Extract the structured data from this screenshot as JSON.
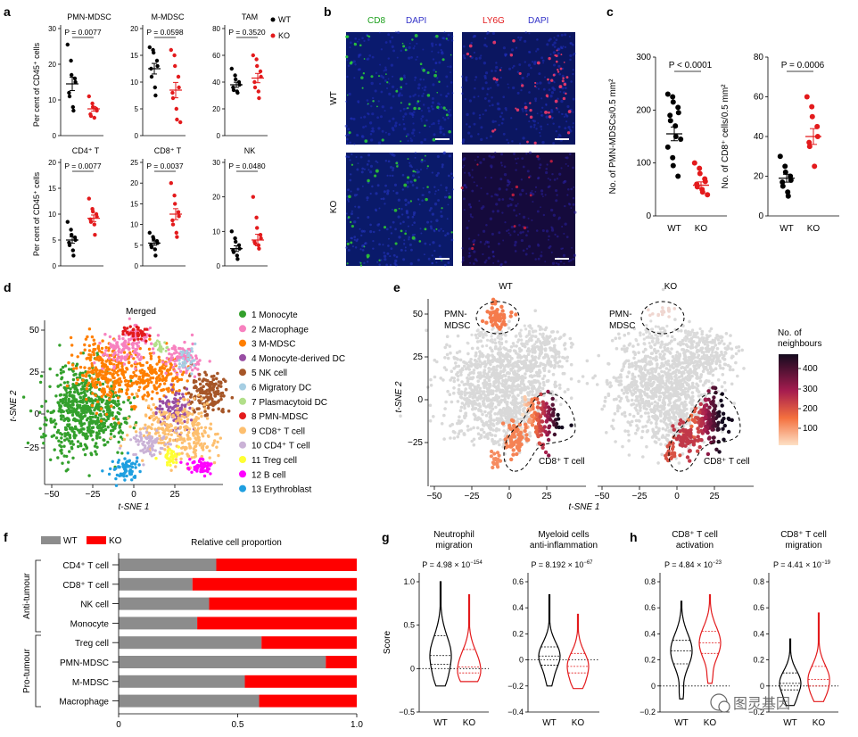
{
  "panels": {
    "a": "a",
    "b": "b",
    "c": "c",
    "d": "d",
    "e": "e",
    "f": "f",
    "g": "g",
    "h": "h"
  },
  "colors": {
    "wt": "#000000",
    "ko": "#e31a1c",
    "grey": "#8c8c8c",
    "red": "#ff0000"
  },
  "panel_a": {
    "ylabel": "Per cent of CD45⁺ cells",
    "legend": [
      {
        "label": "WT",
        "color": "#000000"
      },
      {
        "label": "KO",
        "color": "#e31a1c"
      }
    ],
    "plots": [
      {
        "title": "PMN-MDSC",
        "p": "P = 0.0077",
        "ylim": [
          0,
          30
        ],
        "ticks": [
          "0",
          "10",
          "20",
          "30"
        ],
        "wt": [
          25.5,
          21,
          17,
          16,
          15,
          12,
          11,
          8,
          7
        ],
        "ko": [
          11,
          9,
          8,
          7.5,
          7,
          6,
          5.5,
          5
        ],
        "wt_mean": 14.5,
        "ko_mean": 7.5
      },
      {
        "title": "M-MDSC",
        "p": "P = 0.0598",
        "ylim": [
          0,
          20
        ],
        "ticks": [
          "0",
          "5",
          "10",
          "15",
          "20"
        ],
        "wt": [
          16.5,
          16,
          15.5,
          14,
          13,
          12.5,
          11,
          9,
          7.5
        ],
        "ko": [
          16,
          15,
          13,
          11,
          9,
          8,
          7,
          5,
          3,
          2.5
        ],
        "wt_mean": 12.5,
        "ko_mean": 8.5
      },
      {
        "title": "TAM",
        "p": "P = 0.3520",
        "ylim": [
          0,
          80
        ],
        "ticks": [
          "0",
          "20",
          "40",
          "60",
          "80"
        ],
        "wt": [
          50,
          45,
          42,
          40,
          38,
          36,
          34,
          33,
          32
        ],
        "ko": [
          60,
          57,
          52,
          48,
          44,
          40,
          36,
          33,
          28
        ],
        "wt_mean": 38,
        "ko_mean": 43
      },
      {
        "title": "CD4⁺ T",
        "p": "P = 0.0077",
        "ylim": [
          0,
          20
        ],
        "ticks": [
          "0",
          "5",
          "10",
          "15",
          "20"
        ],
        "wt": [
          8.5,
          7,
          6,
          5.5,
          5,
          4.5,
          4,
          3,
          2
        ],
        "ko": [
          13,
          11,
          10.5,
          10,
          9.5,
          9,
          8.5,
          8,
          6
        ],
        "wt_mean": 5,
        "ko_mean": 9.2
      },
      {
        "title": "CD8⁺ T",
        "p": "P = 0.0037",
        "ylim": [
          0,
          25
        ],
        "ticks": [
          "0",
          "5",
          "10",
          "15",
          "20",
          "25"
        ],
        "wt": [
          8,
          7,
          6.5,
          6,
          5.5,
          5,
          4.5,
          4,
          2.5
        ],
        "ko": [
          20,
          17,
          15,
          13,
          12,
          11,
          10,
          8,
          7
        ],
        "wt_mean": 5.5,
        "ko_mean": 12.5
      },
      {
        "title": "NK",
        "p": "P = 0.0480",
        "ylim": [
          0,
          30
        ],
        "ticks": [
          "0",
          "10",
          "20",
          "30"
        ],
        "wt": [
          10,
          8,
          7,
          6,
          5,
          4.5,
          4,
          3,
          2
        ],
        "ko": [
          20,
          14,
          11,
          9,
          8,
          7,
          6.5,
          6,
          5
        ],
        "wt_mean": 5,
        "ko_mean": 7.5
      }
    ]
  },
  "panel_b": {
    "col1": {
      "a": "CD8",
      "b": "DAPI"
    },
    "col2": {
      "a": "LY6G",
      "b": "DAPI"
    },
    "rows": [
      "WT",
      "KO"
    ]
  },
  "panel_c": {
    "categories": [
      "WT",
      "KO"
    ],
    "plots": [
      {
        "ylabel": "No. of PMN-MDSCs/0.5 mm²",
        "p": "P < 0.0001",
        "ylim": [
          0,
          300
        ],
        "ticks": [
          "0",
          "100",
          "200",
          "300"
        ],
        "wt": [
          230,
          225,
          215,
          205,
          195,
          190,
          180,
          170,
          150,
          145,
          130,
          110,
          95,
          75
        ],
        "ko": [
          100,
          90,
          80,
          70,
          65,
          60,
          55,
          50,
          45,
          40
        ],
        "wt_mean": 155,
        "ko_mean": 58
      },
      {
        "ylabel": "No. of CD8⁺ cells/0.5 mm²",
        "p": "P = 0.0006",
        "ylim": [
          0,
          80
        ],
        "ticks": [
          "0",
          "20",
          "40",
          "60",
          "80"
        ],
        "wt": [
          30,
          25,
          22,
          20,
          18,
          17,
          15,
          12,
          10
        ],
        "ko": [
          60,
          55,
          50,
          45,
          40,
          37,
          35,
          25
        ],
        "wt_mean": 19,
        "ko_mean": 40
      }
    ]
  },
  "panel_d": {
    "title": "Merged",
    "xlabel": "t-SNE 1",
    "ylabel": "t-SNE 2",
    "xticks": [
      "−50",
      "−25",
      "0",
      "25"
    ],
    "yticks": [
      "50",
      "25",
      "0",
      "−25"
    ],
    "legend": [
      {
        "label": "1 Monocyte",
        "color": "#33a02c"
      },
      {
        "label": "2 Macrophage",
        "color": "#f781bf"
      },
      {
        "label": "3 M-MDSC",
        "color": "#ff7f00"
      },
      {
        "label": "4 Monocyte-derived DC",
        "color": "#984ea3"
      },
      {
        "label": "5 NK cell",
        "color": "#a65628"
      },
      {
        "label": "6 Migratory DC",
        "color": "#a6cee3"
      },
      {
        "label": "7 Plasmacytoid DC",
        "color": "#b2df8a"
      },
      {
        "label": "8 PMN-MDSC",
        "color": "#e31a1c"
      },
      {
        "label": "9 CD8⁺ T cell",
        "color": "#fdbf6f"
      },
      {
        "label": "10 CD4⁺ T cell",
        "color": "#cab2d6"
      },
      {
        "label": "11 Treg cell",
        "color": "#ffff33"
      },
      {
        "label": "12 B cell",
        "color": "#ff00ff"
      },
      {
        "label": "13 Erythroblast",
        "color": "#1f9fe0"
      }
    ]
  },
  "panel_e": {
    "titles": [
      "WT",
      "KO"
    ],
    "xlabel": "t-SNE 1",
    "ylabel": "t-SNE 2",
    "xticks": [
      "−50",
      "−25",
      "0",
      "25"
    ],
    "yticks": [
      "50",
      "25",
      "0",
      "−25"
    ],
    "pmn_label": "PMN-\nMDSC",
    "cd8_label": "CD8⁺ T cell",
    "colorbar_title": "No. of\nneighbours",
    "colorbar_ticks": [
      "400",
      "300",
      "200",
      "100"
    ]
  },
  "panel_f": {
    "legend": [
      {
        "label": "WT",
        "color": "#8c8c8c"
      },
      {
        "label": "KO",
        "color": "#ff0000"
      }
    ],
    "title": "Relative cell proportion",
    "groups": [
      {
        "label": "Anti-tumour"
      },
      {
        "label": "Pro-tumour"
      }
    ],
    "xticks": [
      "0",
      "0.5",
      "1.0"
    ],
    "chart_data": {
      "type": "bar",
      "categories": [
        "CD4⁺ T cell",
        "CD8⁺ T cell",
        "NK cell",
        "Monocyte",
        "Treg cell",
        "PMN-MDSC",
        "M-MDSC",
        "Macrophage"
      ],
      "series": [
        {
          "name": "WT",
          "values": [
            0.41,
            0.31,
            0.38,
            0.33,
            0.6,
            0.87,
            0.53,
            0.59
          ]
        },
        {
          "name": "KO",
          "values": [
            0.59,
            0.69,
            0.62,
            0.67,
            0.4,
            0.13,
            0.47,
            0.41
          ]
        }
      ],
      "xlim": [
        0,
        1
      ]
    }
  },
  "panel_g": {
    "ylabel": "Score",
    "categories": [
      "WT",
      "KO"
    ],
    "plots": [
      {
        "title": "Neutrophil\nmigration",
        "p": "P = 4.98 × 10",
        "pexp": "−154",
        "ylim": [
          -0.5,
          1.0
        ],
        "ticks": [
          "−0.5",
          "0",
          "0.5",
          "1.0"
        ],
        "wt": {
          "min": -0.2,
          "max": 1.0,
          "q1": 0.05,
          "med": 0.15,
          "q3": 0.38
        },
        "ko": {
          "min": -0.15,
          "max": 0.85,
          "q1": -0.05,
          "med": 0.02,
          "q3": 0.22
        }
      },
      {
        "title": "Myeloid cells\nanti-inflammation",
        "p": "P = 8.192 × 10",
        "pexp": "−67",
        "ylim": [
          -0.4,
          0.6
        ],
        "ticks": [
          "−0.4",
          "−0.2",
          "0",
          "0.2",
          "0.4",
          "0.6"
        ],
        "wt": {
          "min": -0.2,
          "max": 0.5,
          "q1": -0.04,
          "med": 0.03,
          "q3": 0.1
        },
        "ko": {
          "min": -0.22,
          "max": 0.35,
          "q1": -0.1,
          "med": -0.05,
          "q3": 0.05
        }
      }
    ]
  },
  "panel_h": {
    "categories": [
      "WT",
      "KO"
    ],
    "plots": [
      {
        "title": "CD8⁺ T cell\nactivation",
        "p": "P = 4.84 × 10",
        "pexp": "−23",
        "ylim": [
          -0.2,
          0.8
        ],
        "ticks": [
          "−0.2",
          "0",
          "0.2",
          "0.4",
          "0.6",
          "0.8"
        ],
        "wt": {
          "min": -0.1,
          "max": 0.65,
          "q1": 0.17,
          "med": 0.27,
          "q3": 0.35
        },
        "ko": {
          "min": 0.02,
          "max": 0.7,
          "q1": 0.25,
          "med": 0.33,
          "q3": 0.42
        }
      },
      {
        "title": "CD8⁺ T cell\nmigration",
        "p": "P = 4.41 × 10",
        "pexp": "−19",
        "ylim": [
          -0.2,
          0.8
        ],
        "ticks": [
          "−0.2",
          "0",
          "0.2",
          "0.4",
          "0.6",
          "0.8"
        ],
        "wt": {
          "min": -0.15,
          "max": 0.36,
          "q1": -0.03,
          "med": 0.02,
          "q3": 0.1
        },
        "ko": {
          "min": -0.12,
          "max": 0.56,
          "q1": 0.0,
          "med": 0.05,
          "q3": 0.15
        }
      }
    ]
  },
  "watermark": "图灵基因"
}
